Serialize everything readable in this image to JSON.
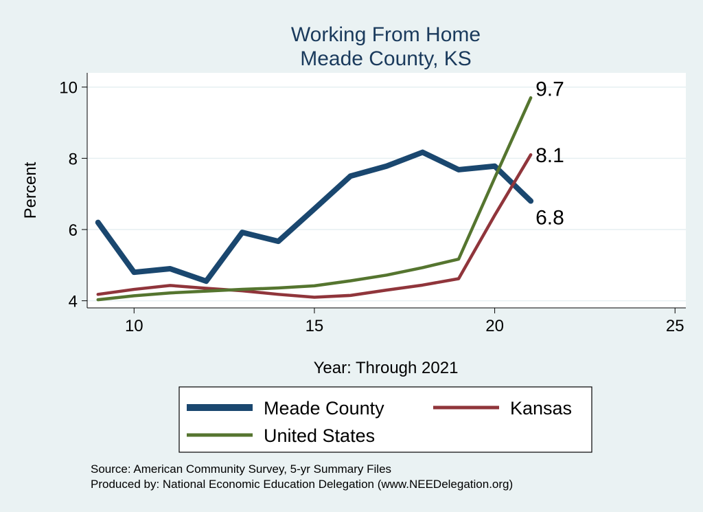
{
  "chart_data": {
    "type": "line",
    "title": [
      "Working From Home",
      "Meade County, KS"
    ],
    "xlabel": "Year: Through 2021",
    "ylabel": "Percent",
    "xlim": [
      8.7,
      25.3
    ],
    "ylim": [
      3.8,
      10.4
    ],
    "xticks": [
      10,
      15,
      20,
      25
    ],
    "yticks": [
      4,
      6,
      8,
      10
    ],
    "grid": "horizontal",
    "x": [
      9,
      10,
      11,
      12,
      13,
      14,
      15,
      16,
      17,
      18,
      19,
      20,
      21
    ],
    "series": [
      {
        "name": "Meade County",
        "color": "#1a476f",
        "values": [
          6.2,
          4.8,
          4.9,
          4.55,
          5.92,
          5.67,
          6.58,
          7.5,
          7.78,
          8.17,
          7.68,
          7.78,
          6.8
        ]
      },
      {
        "name": "Kansas",
        "color": "#90353b",
        "values": [
          4.18,
          4.32,
          4.43,
          4.35,
          4.28,
          4.18,
          4.1,
          4.15,
          4.3,
          4.44,
          4.62,
          6.4,
          8.1
        ]
      },
      {
        "name": "United States",
        "color": "#55752f",
        "values": [
          4.03,
          4.14,
          4.22,
          4.27,
          4.32,
          4.36,
          4.42,
          4.56,
          4.72,
          4.93,
          5.17,
          7.45,
          9.7
        ]
      }
    ],
    "end_labels": [
      {
        "series": "United States",
        "text": "9.7"
      },
      {
        "series": "Kansas",
        "text": "8.1"
      },
      {
        "series": "Meade County",
        "text": "6.8"
      }
    ],
    "legend": {
      "placement": "bottom",
      "entries": [
        "Meade County",
        "Kansas",
        "United States"
      ]
    }
  },
  "source_lines": [
    "Source: American Community Survey, 5-yr Summary Files",
    "Produced by: National Economic Education Delegation (www.NEEDelegation.org)"
  ]
}
